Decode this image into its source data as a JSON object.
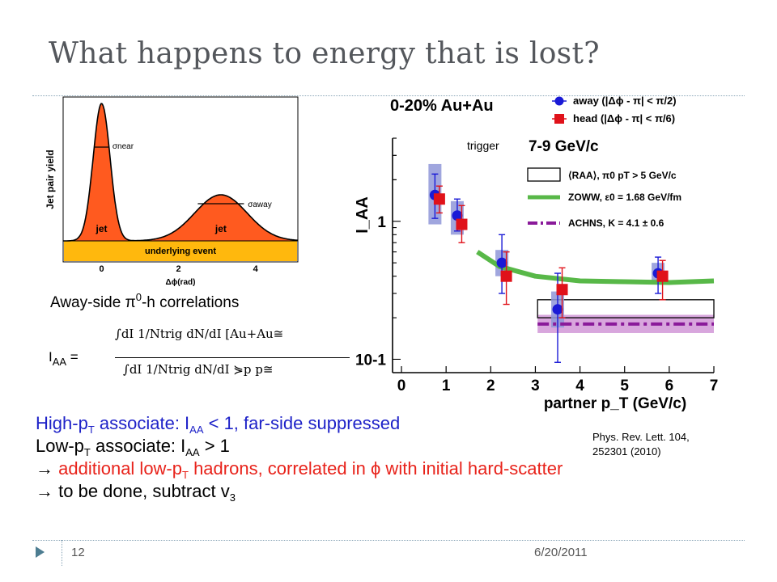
{
  "slide": {
    "title": "What happens to energy that is lost?",
    "caption_pre": "Away-side ",
    "caption_pi": "π",
    "caption_sup": "0",
    "caption_post": "-h correlations",
    "formula": {
      "lhs_base": "I",
      "lhs_sub": "AA",
      "lhs_eq": " =",
      "num": "∫dI  1/Ntrig dN/dI [Au+Au≅",
      "den": "∫dI  1/Ntrig dN/dI ⋟p p≅"
    },
    "reference_line1": "Phys. Rev. Lett. 104,",
    "reference_line2": "252301 (2010)",
    "line1": {
      "a": "High-p",
      "sub": "T",
      "b": " associate: I",
      "sub2": "AA",
      "c": " < 1,  far-side suppressed"
    },
    "line2": {
      "a": "Low-p",
      "sub": "T",
      "b": " associate: I",
      "sub2": "AA",
      "c": " > 1"
    },
    "line3": {
      "arrow": "→ ",
      "a": "additional low-p",
      "sub": "T",
      "b": " hadrons, correlated in ",
      "phi": "ϕ",
      "c": " with initial hard-scatter"
    },
    "line4": {
      "arrow": "→ ",
      "a": "to be done, subtract v",
      "sub": "3"
    },
    "slide_number": "12",
    "date": "6/20/2011",
    "trigger_label": "trigger"
  },
  "chart_data": [
    {
      "type": "area",
      "title": "",
      "xlabel": "Δϕ(rad)",
      "ylabel": "Jet pair yield",
      "xlim": [
        -1,
        5.1
      ],
      "xticks": [
        "0",
        "2",
        "4"
      ],
      "labels": {
        "near_width": "σnear",
        "away_width": "σaway",
        "near_jet": "jet",
        "away_jet": "jet",
        "baseline": "underlying event"
      },
      "colors": {
        "jet": "#ff5a1f",
        "underlying": "#ffb80d",
        "outline": "#000000"
      }
    },
    {
      "type": "scatter",
      "title": "0-20% Au+Au",
      "xlabel": "partner p_T (GeV/c)",
      "ylabel": "I_AA",
      "trigger_range": "7-9 GeV/c",
      "yscale": "log",
      "xlim": [
        -0.2,
        7
      ],
      "ylim": [
        0.08,
        4
      ],
      "xticks": [
        0,
        1,
        2,
        3,
        4,
        5,
        6,
        7
      ],
      "yticks": [
        {
          "v": 0.1,
          "label": "10-1"
        },
        {
          "v": 1,
          "label": "1"
        }
      ],
      "series": [
        {
          "name": "away (|Δϕ - π| < π/2)",
          "color": "#1a1ad6",
          "marker": "circle",
          "points": [
            {
              "x": 0.75,
              "y": 1.55,
              "lo": 1.05,
              "hi": 2.2
            },
            {
              "x": 1.25,
              "y": 1.1,
              "lo": 0.85,
              "hi": 1.45
            },
            {
              "x": 2.25,
              "y": 0.5,
              "lo": 0.3,
              "hi": 0.8
            },
            {
              "x": 3.5,
              "y": 0.23,
              "lo": 0.095,
              "hi": 0.42
            },
            {
              "x": 5.75,
              "y": 0.42,
              "lo": 0.3,
              "hi": 0.55
            }
          ]
        },
        {
          "name": "head (|Δϕ - π| < π/6)",
          "color": "#e0121a",
          "marker": "square",
          "points": [
            {
              "x": 0.85,
              "y": 1.45,
              "lo": 1.15,
              "hi": 1.8
            },
            {
              "x": 1.35,
              "y": 0.95,
              "lo": 0.7,
              "hi": 1.3
            },
            {
              "x": 2.35,
              "y": 0.4,
              "lo": 0.25,
              "hi": 0.6
            },
            {
              "x": 3.6,
              "y": 0.32,
              "lo": 0.2,
              "hi": 0.46
            },
            {
              "x": 5.85,
              "y": 0.4,
              "lo": 0.27,
              "hi": 0.52
            }
          ]
        },
        {
          "name": "ZOWW, ε0 = 1.68 GeV/fm",
          "color": "#58b848",
          "style": "band",
          "points": [
            {
              "x": 1.7,
              "y": 0.6
            },
            {
              "x": 2.2,
              "y": 0.47
            },
            {
              "x": 3,
              "y": 0.4
            },
            {
              "x": 4,
              "y": 0.37
            },
            {
              "x": 5,
              "y": 0.365
            },
            {
              "x": 6,
              "y": 0.36
            },
            {
              "x": 7,
              "y": 0.37
            }
          ]
        },
        {
          "name": "ACHNS, K = 4.1 ± 0.6",
          "color": "#8a1a9a",
          "style": "dashdot",
          "points": [
            {
              "x": 3.05,
              "y": 0.18
            },
            {
              "x": 7,
              "y": 0.18
            }
          ]
        }
      ],
      "rpa_box": {
        "label": "⟨RAA⟩, π0 pT > 5 GeV/c",
        "x0": 3.05,
        "x1": 7,
        "y0": 0.2,
        "y1": 0.27
      },
      "away_systematics": [
        {
          "x": 0.75,
          "lo": 0.95,
          "hi": 2.6
        },
        {
          "x": 1.25,
          "lo": 0.8,
          "hi": 1.4
        },
        {
          "x": 2.25,
          "lo": 0.4,
          "hi": 0.62
        },
        {
          "x": 3.5,
          "lo": 0.17,
          "hi": 0.31
        },
        {
          "x": 5.75,
          "lo": 0.36,
          "hi": 0.5
        }
      ],
      "achns_band": {
        "lo": 0.155,
        "hi": 0.21
      }
    }
  ]
}
